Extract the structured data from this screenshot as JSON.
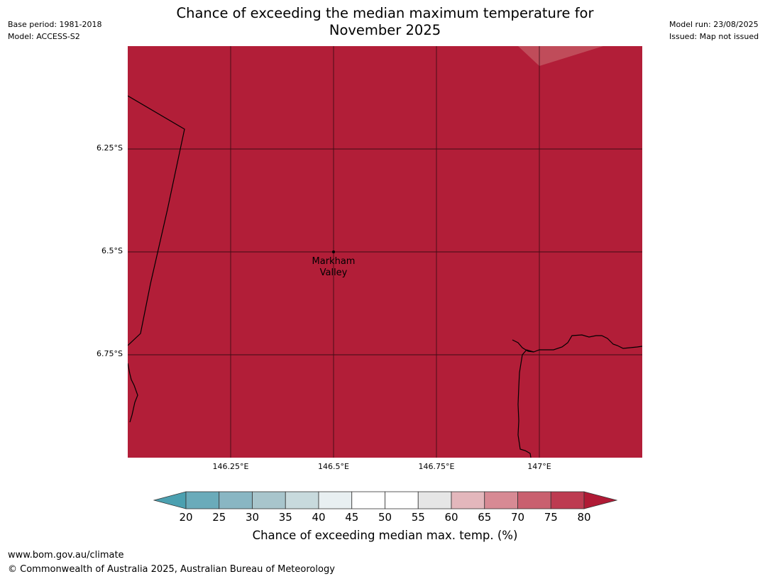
{
  "header": {
    "base_period": "Base period: 1981-2018",
    "model": "Model: ACCESS-S2",
    "model_run": "Model run: 23/08/2025",
    "issued": "Issued: Map not issued",
    "title_line1": "Chance of exceeding the median maximum temperature for",
    "title_line2": "November 2025"
  },
  "map": {
    "fill_color": "#b21e38",
    "lighter_patch_color": "#c04c5a",
    "gridline_color": "#2a0a10",
    "coastline_color": "#000000",
    "lat_ticks": [
      "6.25°S",
      "6.5°S",
      "6.75°S"
    ],
    "lon_ticks": [
      "146.25°E",
      "146.5°E",
      "146.75°E",
      "147°E"
    ],
    "place_label": [
      "Markham",
      "Valley"
    ]
  },
  "colorbar": {
    "label": "Chance of exceeding median max. temp. (%)",
    "ticks": [
      "20",
      "25",
      "30",
      "35",
      "40",
      "45",
      "50",
      "55",
      "60",
      "65",
      "70",
      "75",
      "80"
    ],
    "under_color": "#4ba0b0",
    "over_color": "#b01a35",
    "colors": [
      "#6aabba",
      "#89b6c3",
      "#a8c5cc",
      "#c8dadd",
      "#e8eff1",
      "#ffffff",
      "#ffffff",
      "#e6e6e6",
      "#e3b7bc",
      "#d78a94",
      "#c9606f",
      "#bd3b51"
    ]
  },
  "footer": {
    "url": "www.bom.gov.au/climate",
    "copyright": "© Commonwealth of Australia 2025, Australian Bureau of Meteorology"
  }
}
